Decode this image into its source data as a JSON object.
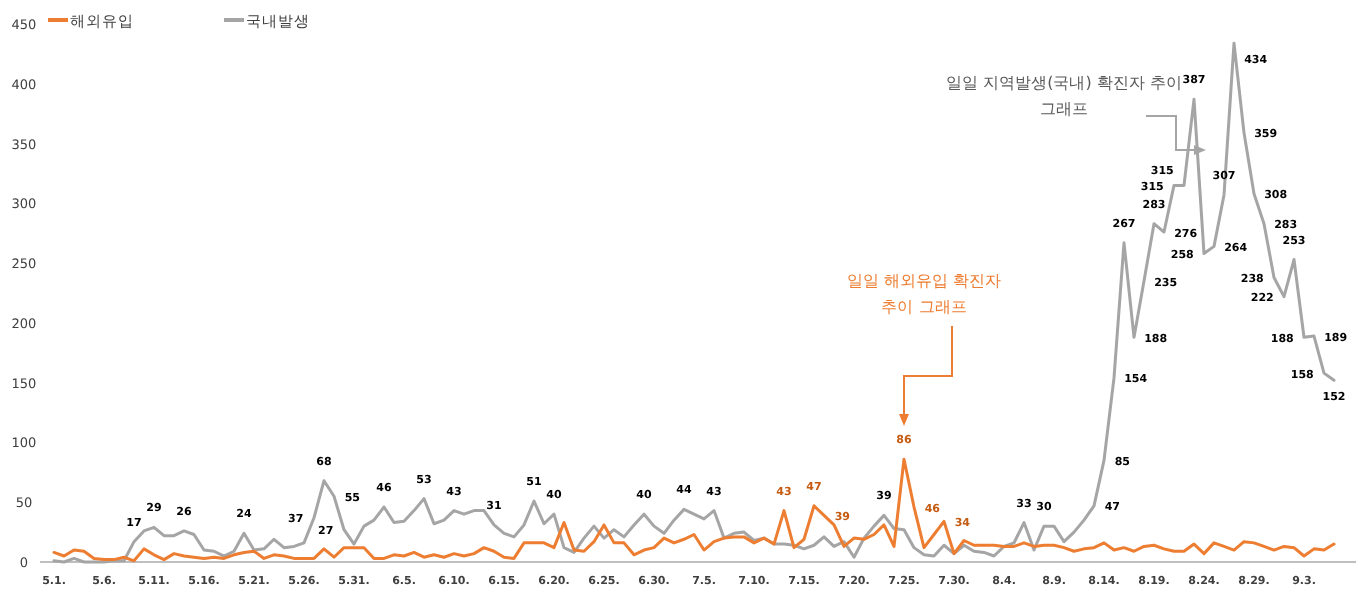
{
  "chart_data": {
    "type": "line",
    "categories": [
      "5.1.",
      null,
      null,
      null,
      null,
      "5.6.",
      null,
      null,
      null,
      null,
      "5.11.",
      null,
      null,
      null,
      null,
      "5.16.",
      null,
      null,
      null,
      null,
      "5.21.",
      null,
      null,
      null,
      null,
      "5.26.",
      null,
      null,
      null,
      null,
      "5.31.",
      null,
      null,
      null,
      null,
      "6.5.",
      null,
      null,
      null,
      null,
      "6.10.",
      null,
      null,
      null,
      null,
      "6.15.",
      null,
      null,
      null,
      null,
      "6.20.",
      null,
      null,
      null,
      null,
      "6.25.",
      null,
      null,
      null,
      null,
      "6.30.",
      null,
      null,
      null,
      null,
      "7.5.",
      null,
      null,
      null,
      null,
      "7.10.",
      null,
      null,
      null,
      null,
      "7.15.",
      null,
      null,
      null,
      null,
      "7.20.",
      null,
      null,
      null,
      null,
      "7.25.",
      null,
      null,
      null,
      null,
      "7.30.",
      null,
      null,
      null,
      null,
      "8.4.",
      null,
      null,
      null,
      null,
      "8.9.",
      null,
      null,
      null,
      null,
      "8.14.",
      null,
      null,
      null,
      null,
      "8.19.",
      null,
      null,
      null,
      null,
      "8.24.",
      null,
      null,
      null,
      null,
      "8.29.",
      null,
      null,
      null,
      null,
      "9.3.",
      null,
      null,
      null
    ],
    "series": [
      {
        "name": "해외유입",
        "color": "#ed7d31",
        "values": [
          8,
          5,
          10,
          9,
          3,
          2,
          2,
          4,
          1,
          11,
          6,
          2,
          7,
          5,
          4,
          3,
          4,
          3,
          6,
          8,
          9,
          3,
          6,
          5,
          3,
          3,
          3,
          11,
          4,
          12,
          12,
          12,
          3,
          3,
          6,
          5,
          8,
          4,
          6,
          4,
          7,
          5,
          7,
          12,
          9,
          4,
          3,
          16,
          16,
          16,
          12,
          33,
          10,
          9,
          17,
          31,
          16,
          16,
          6,
          10,
          12,
          20,
          16,
          19,
          23,
          10,
          17,
          20,
          21,
          21,
          16,
          20,
          15,
          43,
          12,
          19,
          47,
          39,
          31,
          13,
          20,
          19,
          23,
          31,
          13,
          86,
          46,
          12,
          23,
          34,
          7,
          18,
          14,
          14,
          14,
          13,
          13,
          16,
          13,
          14,
          14,
          12,
          9,
          11,
          12,
          16,
          10,
          12,
          9,
          13,
          14,
          11,
          9,
          9,
          15,
          7,
          16,
          13,
          10,
          17,
          16,
          13,
          10,
          13,
          12,
          5,
          11,
          10,
          15
        ],
        "value_labels": [
          null,
          null,
          null,
          null,
          null,
          null,
          null,
          null,
          null,
          null,
          null,
          null,
          null,
          null,
          null,
          null,
          null,
          null,
          null,
          null,
          null,
          null,
          null,
          null,
          null,
          null,
          null,
          null,
          null,
          null,
          null,
          null,
          null,
          null,
          null,
          null,
          null,
          null,
          null,
          null,
          null,
          null,
          null,
          null,
          null,
          null,
          null,
          null,
          null,
          null,
          null,
          null,
          null,
          null,
          null,
          null,
          null,
          null,
          null,
          null,
          null,
          null,
          null,
          null,
          null,
          null,
          null,
          null,
          null,
          null,
          null,
          null,
          null,
          "43",
          null,
          null,
          "47",
          "39",
          null,
          null,
          null,
          null,
          null,
          null,
          null,
          "86",
          "46",
          null,
          null,
          "34",
          null,
          null,
          null,
          null,
          null,
          null,
          null,
          null,
          null,
          null,
          null,
          null,
          null,
          null,
          null,
          null,
          null,
          null,
          null,
          null,
          null,
          null,
          null,
          null,
          null,
          null,
          null,
          null,
          null,
          null,
          null,
          null,
          null,
          null,
          null,
          null,
          null,
          null,
          null
        ]
      },
      {
        "name": "국내발생",
        "color": "#a5a5a5",
        "values": [
          1,
          0,
          3,
          0,
          0,
          0,
          1,
          1,
          17,
          26,
          29,
          22,
          22,
          26,
          23,
          10,
          9,
          5,
          9,
          24,
          10,
          11,
          19,
          12,
          13,
          16,
          37,
          68,
          55,
          27,
          15,
          30,
          35,
          46,
          33,
          34,
          43,
          53,
          32,
          35,
          43,
          40,
          43,
          43,
          31,
          24,
          21,
          31,
          51,
          32,
          40,
          12,
          8,
          20,
          30,
          20,
          27,
          21,
          31,
          40,
          30,
          24,
          35,
          44,
          40,
          36,
          43,
          20,
          24,
          25,
          18,
          20,
          15,
          15,
          14,
          11,
          14,
          21,
          13,
          17,
          4,
          20,
          30,
          39,
          28,
          27,
          12,
          6,
          5,
          14,
          7,
          14,
          9,
          8,
          5,
          13,
          16,
          33,
          10,
          30,
          30,
          17,
          25,
          35,
          47,
          85,
          154,
          267,
          188,
          235,
          283,
          276,
          315,
          315,
          387,
          258,
          264,
          307,
          434,
          359,
          308,
          283,
          238,
          222,
          253,
          188,
          189,
          158,
          152
        ],
        "value_labels": [
          null,
          null,
          null,
          null,
          null,
          null,
          null,
          null,
          "17",
          null,
          "29",
          null,
          null,
          "26",
          null,
          null,
          null,
          null,
          null,
          "24",
          null,
          null,
          null,
          null,
          null,
          null,
          "37",
          "68",
          "55",
          "27",
          null,
          null,
          null,
          "46",
          null,
          null,
          null,
          "53",
          null,
          null,
          "43",
          null,
          null,
          null,
          "31",
          null,
          null,
          null,
          "51",
          null,
          "40",
          null,
          null,
          null,
          null,
          null,
          null,
          null,
          null,
          "40",
          null,
          null,
          null,
          "44",
          null,
          null,
          "43",
          null,
          null,
          null,
          null,
          null,
          null,
          null,
          null,
          null,
          null,
          null,
          null,
          null,
          null,
          null,
          null,
          "39",
          null,
          null,
          null,
          null,
          null,
          null,
          null,
          null,
          null,
          null,
          null,
          null,
          null,
          "33",
          null,
          "30",
          null,
          null,
          null,
          null,
          "47",
          "85",
          "154",
          "267",
          "188",
          "235",
          "283",
          "276",
          "315",
          "315",
          "387",
          "258",
          "264",
          "307",
          "434",
          "359",
          "308",
          "283",
          "238",
          "222",
          "253",
          "188",
          "189",
          "158",
          "152"
        ]
      }
    ],
    "ylim": [
      0,
      450
    ],
    "yticks": [
      0,
      50,
      100,
      150,
      200,
      250,
      300,
      350,
      400,
      450
    ],
    "legend": "top left",
    "annotations": [
      "일일 해외유입 확진자 추이 그래프",
      "일일 지역발생(국내) 확진자 추이 그래프"
    ]
  }
}
